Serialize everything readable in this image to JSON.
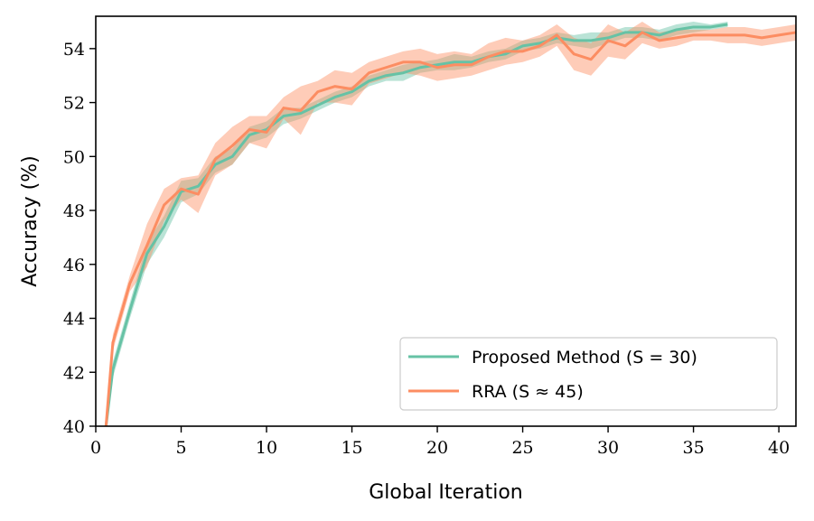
{
  "chart_data": {
    "type": "line",
    "xlabel": "Global Iteration",
    "ylabel": "Accuracy (%)",
    "xlim": [
      0,
      41
    ],
    "ylim": [
      40,
      55.2
    ],
    "x_ticks": [
      "0",
      "5",
      "10",
      "15",
      "20",
      "25",
      "30",
      "35",
      "40"
    ],
    "y_ticks": [
      "40",
      "42",
      "44",
      "46",
      "48",
      "50",
      "52",
      "54"
    ],
    "grid": false,
    "legend_position": "lower right",
    "series": [
      {
        "name": "Proposed Method (S = 30)",
        "color": "#66c2a5",
        "x": [
          0.6,
          1,
          2,
          3,
          4,
          5,
          6,
          7,
          8,
          9,
          10,
          11,
          12,
          13,
          14,
          15,
          16,
          17,
          18,
          19,
          20,
          21,
          22,
          23,
          24,
          25,
          26,
          27,
          28,
          29,
          30,
          31,
          32,
          33,
          34,
          35,
          36,
          37
        ],
        "y": [
          40.0,
          42.1,
          44.3,
          46.4,
          47.4,
          48.7,
          48.9,
          49.7,
          50.0,
          50.8,
          51.0,
          51.5,
          51.6,
          51.9,
          52.2,
          52.4,
          52.8,
          53.0,
          53.1,
          53.3,
          53.4,
          53.5,
          53.5,
          53.7,
          53.8,
          54.1,
          54.2,
          54.4,
          54.3,
          54.3,
          54.4,
          54.6,
          54.6,
          54.5,
          54.7,
          54.8,
          54.8,
          54.9
        ],
        "band": [
          0.2,
          0.3,
          0.3,
          0.4,
          0.4,
          0.4,
          0.3,
          0.3,
          0.3,
          0.3,
          0.3,
          0.3,
          0.2,
          0.2,
          0.2,
          0.2,
          0.2,
          0.2,
          0.3,
          0.2,
          0.2,
          0.3,
          0.2,
          0.2,
          0.2,
          0.2,
          0.2,
          0.2,
          0.2,
          0.3,
          0.2,
          0.2,
          0.2,
          0.2,
          0.2,
          0.2,
          0.1,
          0.1
        ]
      },
      {
        "name": "RRA (S ≈ 45)",
        "color": "#fc8d62",
        "x": [
          0.6,
          1,
          2,
          3,
          4,
          5,
          6,
          7,
          8,
          9,
          10,
          11,
          12,
          13,
          14,
          15,
          16,
          17,
          18,
          19,
          20,
          21,
          22,
          23,
          24,
          25,
          26,
          27,
          28,
          29,
          30,
          31,
          32,
          33,
          34,
          35,
          36,
          37,
          38,
          39,
          40,
          41
        ],
        "y": [
          40.0,
          43.1,
          45.3,
          46.7,
          48.2,
          48.8,
          48.6,
          49.9,
          50.4,
          51.0,
          50.9,
          51.8,
          51.7,
          52.4,
          52.6,
          52.5,
          53.1,
          53.3,
          53.5,
          53.5,
          53.3,
          53.4,
          53.4,
          53.7,
          53.9,
          53.9,
          54.1,
          54.5,
          53.8,
          53.6,
          54.3,
          54.1,
          54.6,
          54.3,
          54.4,
          54.5,
          54.5,
          54.5,
          54.5,
          54.4,
          54.5,
          54.6
        ],
        "band": [
          0.2,
          0.3,
          0.3,
          0.8,
          0.6,
          0.4,
          0.7,
          0.6,
          0.7,
          0.5,
          0.6,
          0.4,
          0.9,
          0.4,
          0.6,
          0.6,
          0.4,
          0.4,
          0.4,
          0.5,
          0.5,
          0.5,
          0.4,
          0.5,
          0.5,
          0.4,
          0.4,
          0.4,
          0.6,
          0.6,
          0.6,
          0.5,
          0.4,
          0.3,
          0.3,
          0.2,
          0.2,
          0.3,
          0.3,
          0.3,
          0.3,
          0.3
        ]
      }
    ]
  }
}
